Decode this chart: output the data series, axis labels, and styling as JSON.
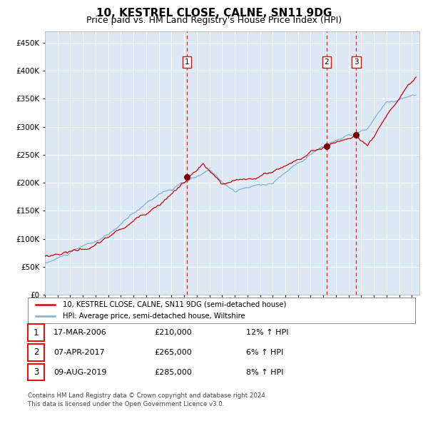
{
  "title": "10, KESTREL CLOSE, CALNE, SN11 9DG",
  "subtitle": "Price paid vs. HM Land Registry's House Price Index (HPI)",
  "title_fontsize": 11,
  "subtitle_fontsize": 9,
  "plot_bg_color": "#dce9f5",
  "legend_label_red": "10, KESTREL CLOSE, CALNE, SN11 9DG (semi-detached house)",
  "legend_label_blue": "HPI: Average price, semi-detached house, Wiltshire",
  "red_color": "#cc0000",
  "blue_color": "#7fafd4",
  "transactions": [
    {
      "num": 1,
      "date": "17-MAR-2006",
      "price": 210000,
      "pct": "12%",
      "dir": "↑",
      "x_year": 2006.21
    },
    {
      "num": 2,
      "date": "07-APR-2017",
      "price": 265000,
      "pct": "6%",
      "dir": "↑",
      "x_year": 2017.27
    },
    {
      "num": 3,
      "date": "09-AUG-2019",
      "price": 285000,
      "pct": "8%",
      "dir": "↑",
      "x_year": 2019.61
    }
  ],
  "footer_line1": "Contains HM Land Registry data © Crown copyright and database right 2024.",
  "footer_line2": "This data is licensed under the Open Government Licence v3.0.",
  "ylim": [
    0,
    470000
  ],
  "xlim_start": 1995.0,
  "xlim_end": 2024.6
}
